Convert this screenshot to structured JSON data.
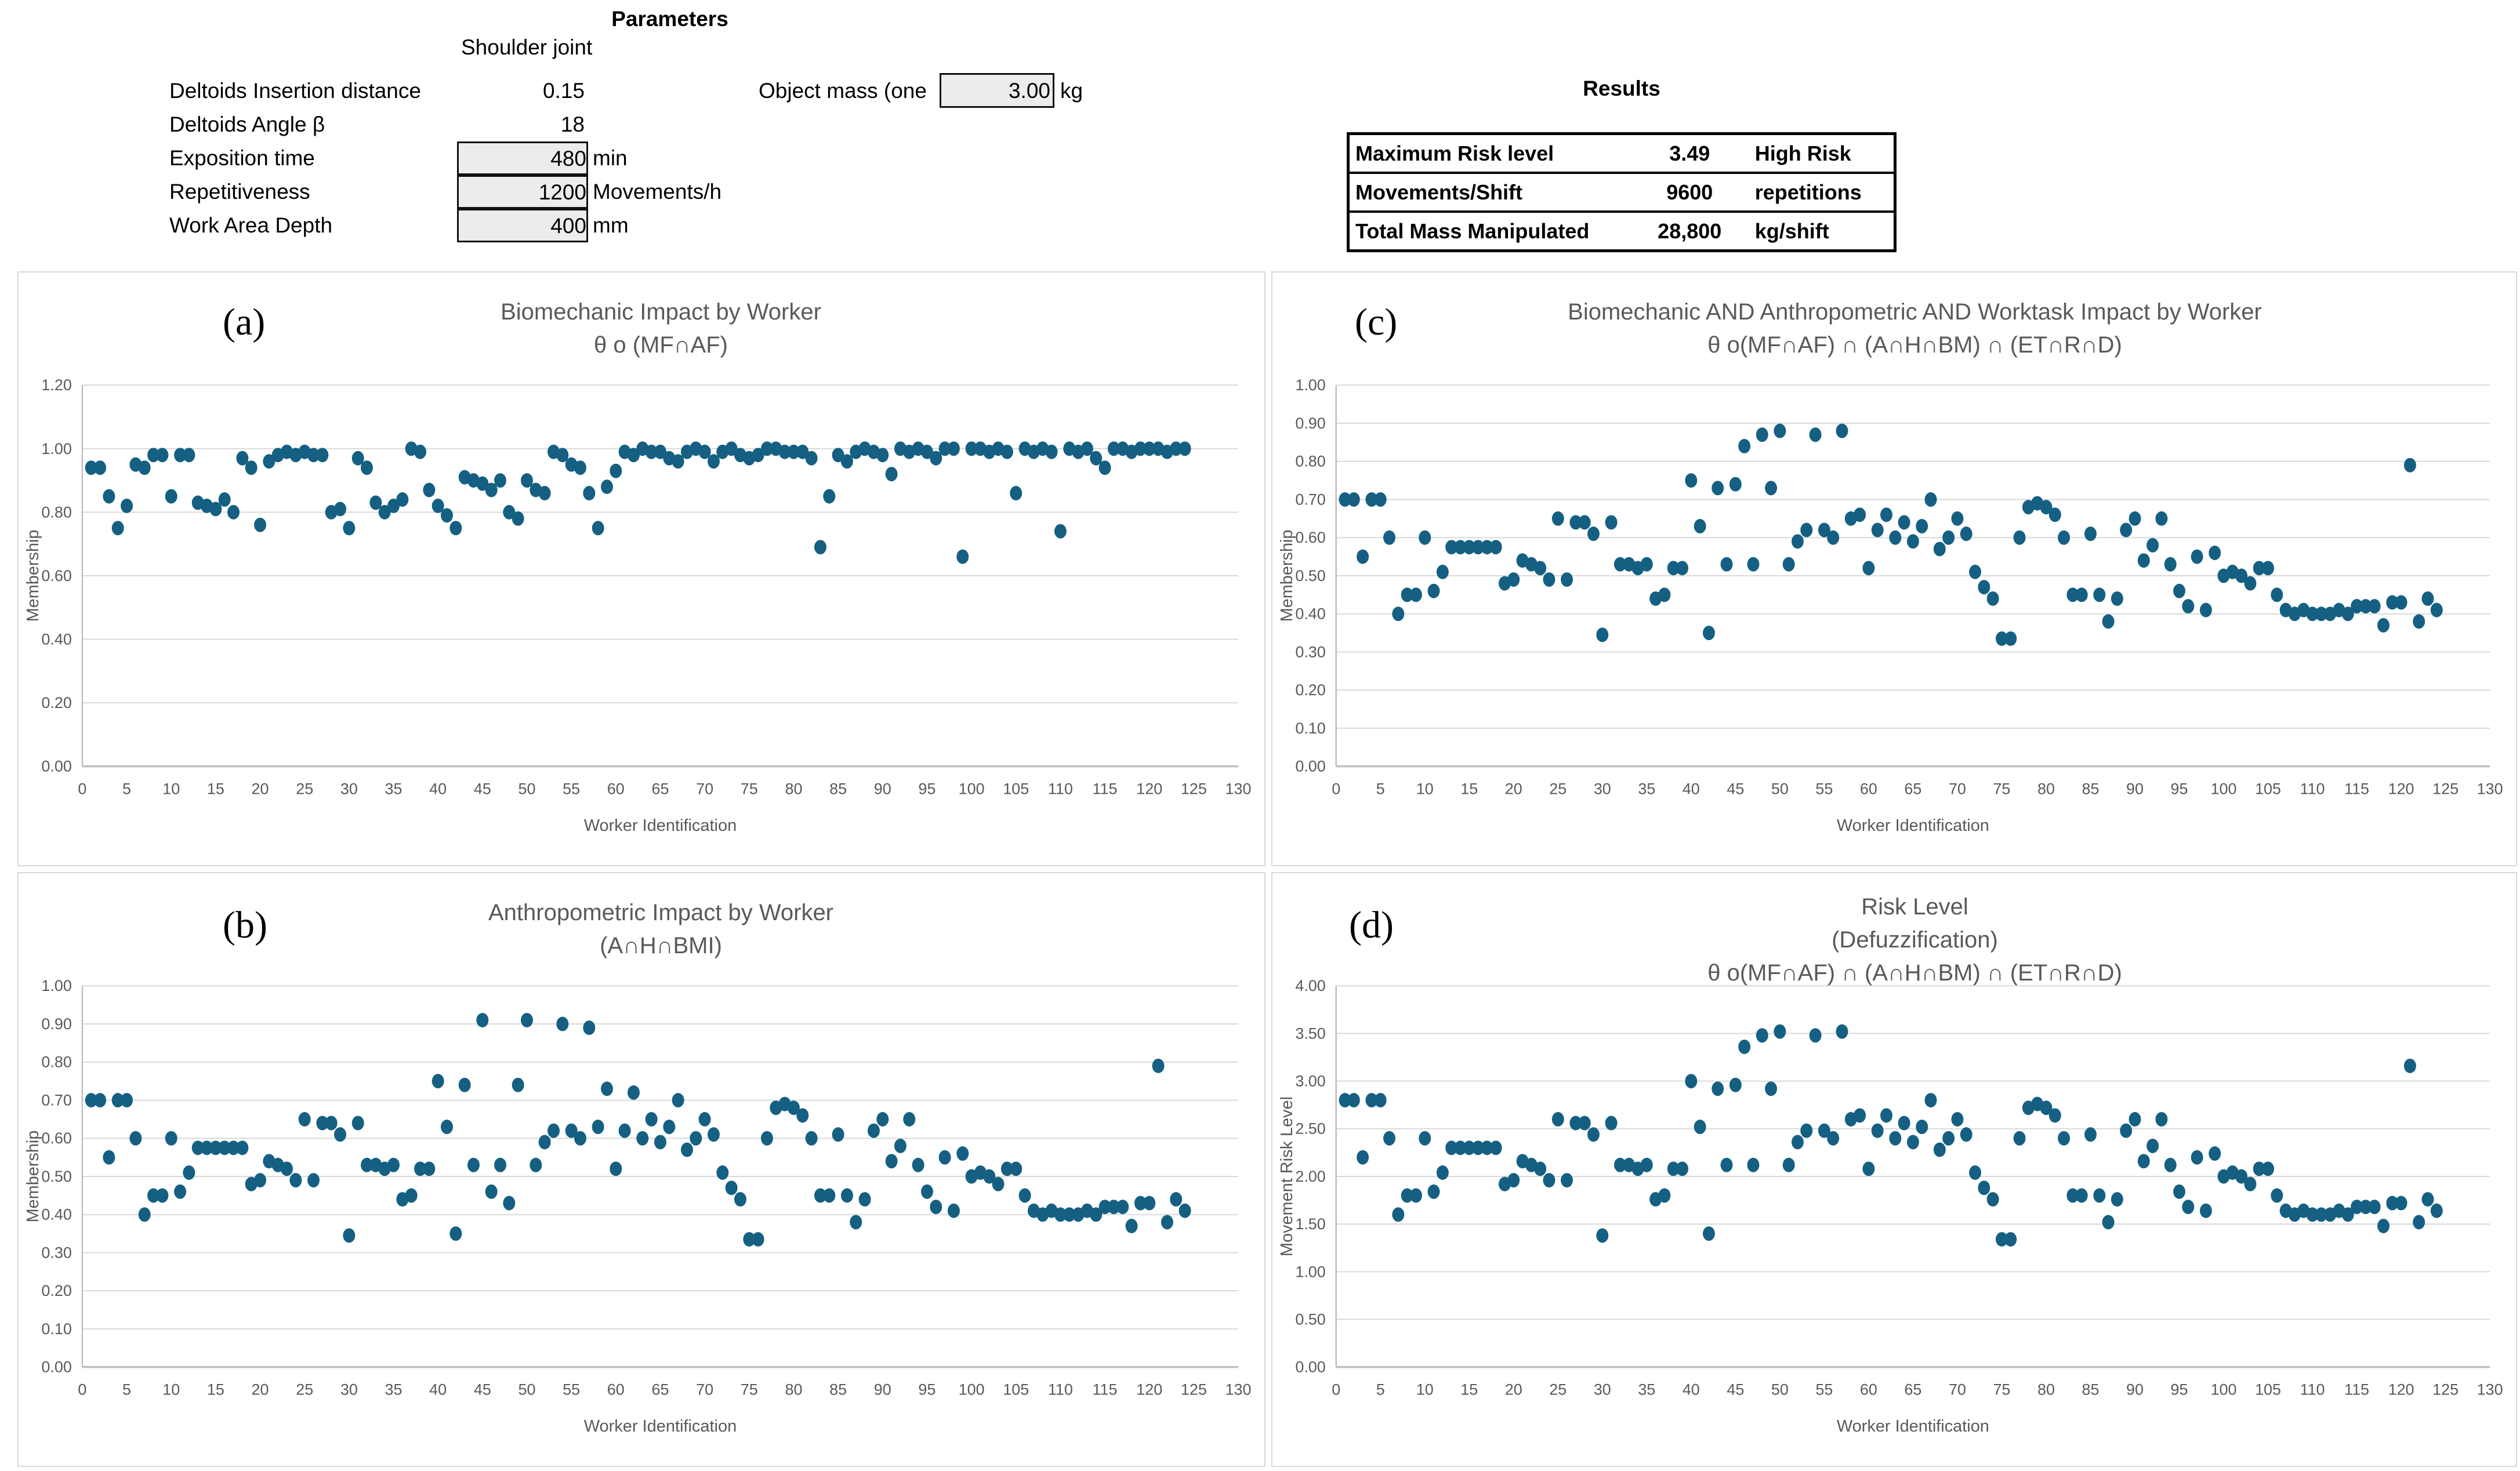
{
  "colors": {
    "point": "#156082",
    "grid": "#D9D9D9",
    "axis_line": "#BFBFBF",
    "gray_text": "#595959"
  },
  "parameters": {
    "title": "Parameters",
    "subtitle": "Shoulder joint",
    "rows": [
      {
        "label": "Deltoids Insertion distance",
        "value": "0.15",
        "unit": "",
        "boxed": false
      },
      {
        "label": "Deltoids Angle β",
        "value": "18",
        "unit": "",
        "boxed": false
      },
      {
        "label": "Exposition time",
        "value": "480",
        "unit": "min",
        "boxed": true
      },
      {
        "label": "Repetitiveness",
        "value": "1200",
        "unit": "Movements/h",
        "boxed": true
      },
      {
        "label": "Work Area Depth",
        "value": "400",
        "unit": "mm",
        "boxed": true
      }
    ],
    "object_mass": {
      "label": "Object mass (one",
      "value": "3.00",
      "unit": "kg"
    }
  },
  "results": {
    "title": "Results",
    "rows": [
      {
        "label": "Maximum Risk level",
        "value": "3.49",
        "unit": "High Risk"
      },
      {
        "label": "Movements/Shift",
        "value": "9600",
        "unit": "repetitions"
      },
      {
        "label": "Total Mass Manipulated",
        "value": "28,800",
        "unit": "kg/shift"
      }
    ]
  },
  "chart_data": [
    {
      "panel": "a",
      "letter": "(a)",
      "type": "scatter",
      "title_lines": [
        "Biomechanic Impact by Worker",
        "θ o (MF∩AF)"
      ],
      "xlabel": "Worker Identification",
      "ylabel": "Membership",
      "xlim": [
        0,
        130
      ],
      "xtick_step": 5,
      "ylim": [
        0,
        1.2
      ],
      "ytick_step": 0.2,
      "ytick_decimals": 2,
      "x_note": "worker ids, sequential 1..124",
      "y": [
        0.94,
        0.94,
        0.85,
        0.75,
        0.82,
        0.95,
        0.94,
        0.98,
        0.98,
        0.85,
        0.98,
        0.98,
        0.83,
        0.82,
        0.81,
        0.84,
        0.8,
        0.97,
        0.94,
        0.76,
        0.96,
        0.98,
        0.99,
        0.98,
        0.99,
        0.98,
        0.98,
        0.8,
        0.81,
        0.75,
        0.97,
        0.94,
        0.83,
        0.8,
        0.82,
        0.84,
        1.0,
        0.99,
        0.87,
        0.82,
        0.79,
        0.75,
        0.91,
        0.9,
        0.89,
        0.87,
        0.9,
        0.8,
        0.78,
        0.9,
        0.87,
        0.86,
        0.99,
        0.98,
        0.95,
        0.94,
        0.86,
        0.75,
        0.88,
        0.93,
        0.99,
        0.98,
        1.0,
        0.99,
        0.99,
        0.97,
        0.96,
        0.99,
        1.0,
        0.99,
        0.96,
        0.99,
        1.0,
        0.98,
        0.97,
        0.98,
        1.0,
        1.0,
        0.99,
        0.99,
        0.99,
        0.97,
        0.69,
        0.85,
        0.98,
        0.96,
        0.99,
        1.0,
        0.99,
        0.98,
        0.92,
        1.0,
        0.99,
        1.0,
        0.99,
        0.97,
        1.0,
        1.0,
        0.66,
        1.0,
        1.0,
        0.99,
        1.0,
        0.99,
        0.86,
        1.0,
        0.99,
        1.0,
        0.99,
        0.74,
        1.0,
        0.99,
        1.0,
        0.97,
        0.94,
        1.0,
        1.0,
        0.99,
        1.0,
        1.0,
        1.0,
        0.99,
        1.0,
        1.0
      ]
    },
    {
      "panel": "c",
      "letter": "(c)",
      "type": "scatter",
      "title_lines": [
        "Biomechanic AND Anthropometric AND  Worktask Impact by Worker",
        "θ o(MF∩AF) ∩ (A∩H∩BM) ∩ (ET∩R∩D)"
      ],
      "xlabel": "Worker Identification",
      "ylabel": "Membership",
      "xlim": [
        0,
        130
      ],
      "xtick_step": 5,
      "ylim": [
        0,
        1.0
      ],
      "ytick_step": 0.1,
      "ytick_decimals": 2,
      "x_note": "worker ids, sequential 1..124",
      "y": [
        0.7,
        0.7,
        0.55,
        0.7,
        0.7,
        0.6,
        0.4,
        0.45,
        0.45,
        0.6,
        0.46,
        0.51,
        0.575,
        0.575,
        0.575,
        0.575,
        0.575,
        0.575,
        0.48,
        0.49,
        0.54,
        0.53,
        0.52,
        0.49,
        0.65,
        0.49,
        0.64,
        0.64,
        0.61,
        0.345,
        0.64,
        0.53,
        0.53,
        0.52,
        0.53,
        0.44,
        0.45,
        0.52,
        0.52,
        0.75,
        0.63,
        0.35,
        0.73,
        0.53,
        0.74,
        0.84,
        0.53,
        0.87,
        0.73,
        0.88,
        0.53,
        0.59,
        0.62,
        0.87,
        0.62,
        0.6,
        0.88,
        0.65,
        0.66,
        0.52,
        0.62,
        0.66,
        0.6,
        0.64,
        0.59,
        0.63,
        0.7,
        0.57,
        0.6,
        0.65,
        0.61,
        0.51,
        0.47,
        0.44,
        0.335,
        0.335,
        0.6,
        0.68,
        0.69,
        0.68,
        0.66,
        0.6,
        0.45,
        0.45,
        0.61,
        0.45,
        0.38,
        0.44,
        0.62,
        0.65,
        0.54,
        0.58,
        0.65,
        0.53,
        0.46,
        0.42,
        0.55,
        0.41,
        0.56,
        0.5,
        0.51,
        0.5,
        0.48,
        0.52,
        0.52,
        0.45,
        0.41,
        0.4,
        0.41,
        0.4,
        0.4,
        0.4,
        0.41,
        0.4,
        0.42,
        0.42,
        0.42,
        0.37,
        0.43,
        0.43,
        0.79,
        0.38,
        0.44,
        0.41
      ]
    },
    {
      "panel": "b",
      "letter": "(b)",
      "type": "scatter",
      "title_lines": [
        "Anthropometric Impact by Worker",
        "(A∩H∩BMI)"
      ],
      "xlabel": "Worker Identification",
      "ylabel": "Membership",
      "xlim": [
        0,
        130
      ],
      "xtick_step": 5,
      "ylim": [
        0,
        1.0
      ],
      "ytick_step": 0.1,
      "ytick_decimals": 2,
      "x_note": "worker ids, sequential 1..124",
      "y": [
        0.7,
        0.7,
        0.55,
        0.7,
        0.7,
        0.6,
        0.4,
        0.45,
        0.45,
        0.6,
        0.46,
        0.51,
        0.575,
        0.575,
        0.575,
        0.575,
        0.575,
        0.575,
        0.48,
        0.49,
        0.54,
        0.53,
        0.52,
        0.49,
        0.65,
        0.49,
        0.64,
        0.64,
        0.61,
        0.345,
        0.64,
        0.53,
        0.53,
        0.52,
        0.53,
        0.44,
        0.45,
        0.52,
        0.52,
        0.75,
        0.63,
        0.35,
        0.74,
        0.53,
        0.91,
        0.46,
        0.53,
        0.43,
        0.74,
        0.91,
        0.53,
        0.59,
        0.62,
        0.9,
        0.62,
        0.6,
        0.89,
        0.63,
        0.73,
        0.52,
        0.62,
        0.72,
        0.6,
        0.65,
        0.59,
        0.63,
        0.7,
        0.57,
        0.6,
        0.65,
        0.61,
        0.51,
        0.47,
        0.44,
        0.335,
        0.335,
        0.6,
        0.68,
        0.69,
        0.68,
        0.66,
        0.6,
        0.45,
        0.45,
        0.61,
        0.45,
        0.38,
        0.44,
        0.62,
        0.65,
        0.54,
        0.58,
        0.65,
        0.53,
        0.46,
        0.42,
        0.55,
        0.41,
        0.56,
        0.5,
        0.51,
        0.5,
        0.48,
        0.52,
        0.52,
        0.45,
        0.41,
        0.4,
        0.41,
        0.4,
        0.4,
        0.4,
        0.41,
        0.4,
        0.42,
        0.42,
        0.42,
        0.37,
        0.43,
        0.43,
        0.79,
        0.38,
        0.44,
        0.41
      ]
    },
    {
      "panel": "d",
      "letter": "(d)",
      "type": "scatter",
      "title_lines": [
        "Risk Level",
        "(Defuzzification)",
        "θ o(MF∩AF) ∩ (A∩H∩BM) ∩ (ET∩R∩D)"
      ],
      "xlabel": "Worker Identification",
      "ylabel": "Movement Risk Level",
      "xlim": [
        0,
        130
      ],
      "xtick_step": 5,
      "ylim": [
        0,
        4.0
      ],
      "ytick_step": 0.5,
      "ytick_decimals": 2,
      "x_note": "worker ids, sequential 1..124",
      "y": [
        2.8,
        2.8,
        2.2,
        2.8,
        2.8,
        2.4,
        1.6,
        1.8,
        1.8,
        2.4,
        1.84,
        2.04,
        2.3,
        2.3,
        2.3,
        2.3,
        2.3,
        2.3,
        1.92,
        1.96,
        2.16,
        2.12,
        2.08,
        1.96,
        2.6,
        1.96,
        2.56,
        2.56,
        2.44,
        1.38,
        2.56,
        2.12,
        2.12,
        2.08,
        2.12,
        1.76,
        1.8,
        2.08,
        2.08,
        3.0,
        2.52,
        1.4,
        2.92,
        2.12,
        2.96,
        3.36,
        2.12,
        3.48,
        2.92,
        3.52,
        2.12,
        2.36,
        2.48,
        3.48,
        2.48,
        2.4,
        3.52,
        2.6,
        2.64,
        2.08,
        2.48,
        2.64,
        2.4,
        2.56,
        2.36,
        2.52,
        2.8,
        2.28,
        2.4,
        2.6,
        2.44,
        2.04,
        1.88,
        1.76,
        1.34,
        1.34,
        2.4,
        2.72,
        2.76,
        2.72,
        2.64,
        2.4,
        1.8,
        1.8,
        2.44,
        1.8,
        1.52,
        1.76,
        2.48,
        2.6,
        2.16,
        2.32,
        2.6,
        2.12,
        1.84,
        1.68,
        2.2,
        1.64,
        2.24,
        2.0,
        2.04,
        2.0,
        1.92,
        2.08,
        2.08,
        1.8,
        1.64,
        1.6,
        1.64,
        1.6,
        1.6,
        1.6,
        1.64,
        1.6,
        1.68,
        1.68,
        1.68,
        1.48,
        1.72,
        1.72,
        3.16,
        1.52,
        1.76,
        1.64
      ]
    }
  ]
}
